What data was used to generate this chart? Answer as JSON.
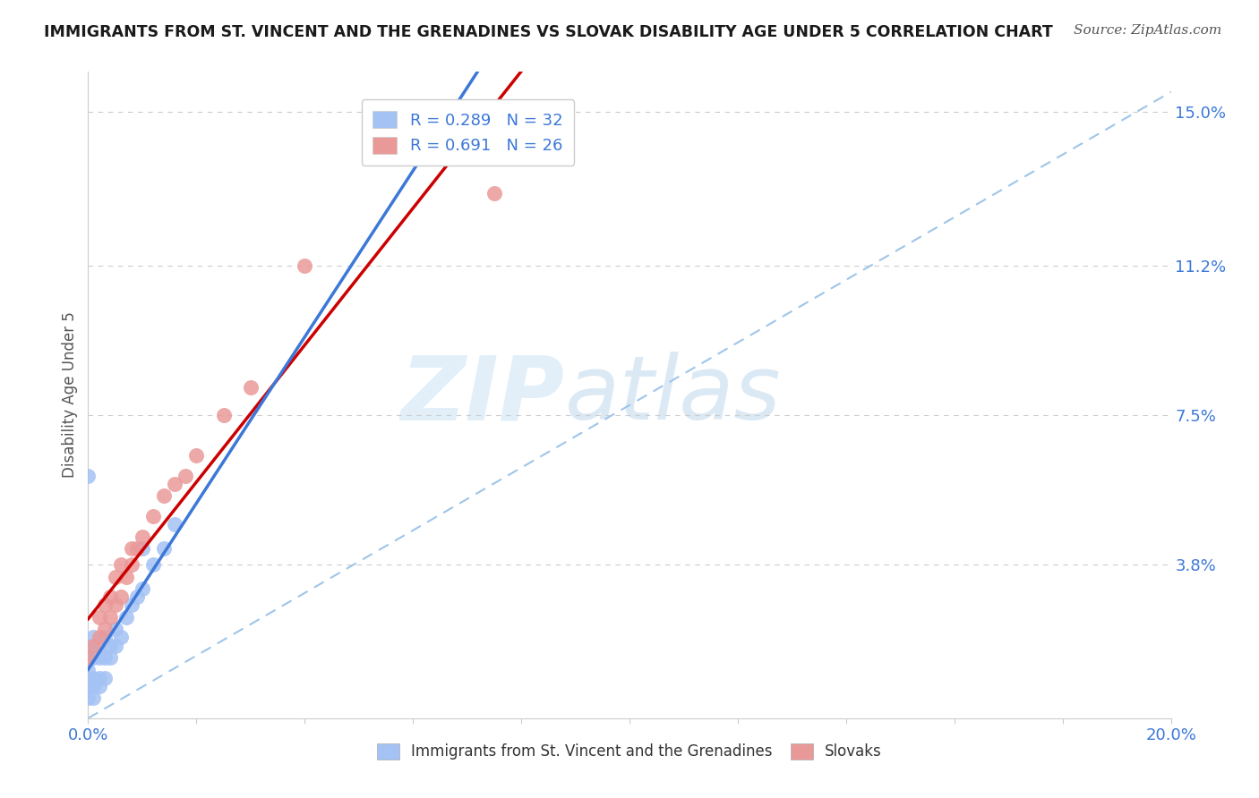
{
  "title": "IMMIGRANTS FROM ST. VINCENT AND THE GRENADINES VS SLOVAK DISABILITY AGE UNDER 5 CORRELATION CHART",
  "source": "Source: ZipAtlas.com",
  "ylabel": "Disability Age Under 5",
  "xlim": [
    0.0,
    0.2
  ],
  "ylim": [
    0.0,
    0.16
  ],
  "ytick_positions": [
    0.038,
    0.075,
    0.112,
    0.15
  ],
  "ytick_labels": [
    "3.8%",
    "7.5%",
    "11.2%",
    "15.0%"
  ],
  "blue_R": 0.289,
  "blue_N": 32,
  "pink_R": 0.691,
  "pink_N": 26,
  "blue_color": "#a4c2f4",
  "pink_color": "#ea9999",
  "blue_line_color": "#3c78d8",
  "pink_line_color": "#cc0000",
  "dashed_line_color": "#9fc5e8",
  "watermark_zip": "ZIP",
  "watermark_atlas": "atlas",
  "grid_color": "#cccccc",
  "background_color": "#ffffff",
  "blue_scatter_x": [
    0.0,
    0.0,
    0.0,
    0.0,
    0.0,
    0.001,
    0.001,
    0.001,
    0.001,
    0.001,
    0.001,
    0.002,
    0.002,
    0.002,
    0.002,
    0.003,
    0.003,
    0.003,
    0.004,
    0.004,
    0.005,
    0.005,
    0.006,
    0.007,
    0.008,
    0.009,
    0.01,
    0.012,
    0.014,
    0.016,
    0.0,
    0.01
  ],
  "blue_scatter_y": [
    0.005,
    0.008,
    0.01,
    0.012,
    0.015,
    0.005,
    0.008,
    0.01,
    0.015,
    0.018,
    0.02,
    0.008,
    0.01,
    0.015,
    0.018,
    0.01,
    0.015,
    0.02,
    0.015,
    0.018,
    0.018,
    0.022,
    0.02,
    0.025,
    0.028,
    0.03,
    0.032,
    0.038,
    0.042,
    0.048,
    0.06,
    0.042
  ],
  "pink_scatter_x": [
    0.0,
    0.001,
    0.002,
    0.002,
    0.003,
    0.003,
    0.004,
    0.004,
    0.005,
    0.005,
    0.006,
    0.006,
    0.007,
    0.008,
    0.008,
    0.009,
    0.01,
    0.012,
    0.014,
    0.016,
    0.018,
    0.02,
    0.025,
    0.03,
    0.04,
    0.075
  ],
  "pink_scatter_y": [
    0.015,
    0.018,
    0.02,
    0.025,
    0.022,
    0.028,
    0.025,
    0.03,
    0.028,
    0.035,
    0.03,
    0.038,
    0.035,
    0.038,
    0.042,
    0.042,
    0.045,
    0.05,
    0.055,
    0.058,
    0.06,
    0.065,
    0.075,
    0.082,
    0.112,
    0.13
  ]
}
